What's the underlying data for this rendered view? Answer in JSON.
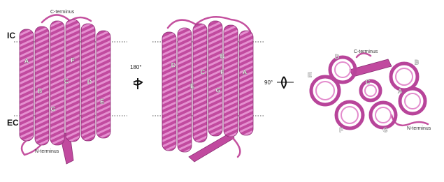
{
  "membrane": {
    "ic": "IC",
    "ec": "EC"
  },
  "rotations": [
    "180°",
    "90°"
  ],
  "views": [
    {
      "c_terminus": "C-terminus",
      "n_terminus": "N-terminus",
      "helices": [
        "A",
        "B",
        "C",
        "D",
        "E",
        "F",
        "G"
      ]
    },
    {
      "helices": [
        "A",
        "B",
        "C",
        "D",
        "E",
        "F",
        "G"
      ]
    },
    {
      "c_terminus": "C-terminus",
      "n_terminus": "N-terminus",
      "helices": [
        "A",
        "B",
        "C",
        "D",
        "E",
        "F",
        "G"
      ]
    }
  ]
}
